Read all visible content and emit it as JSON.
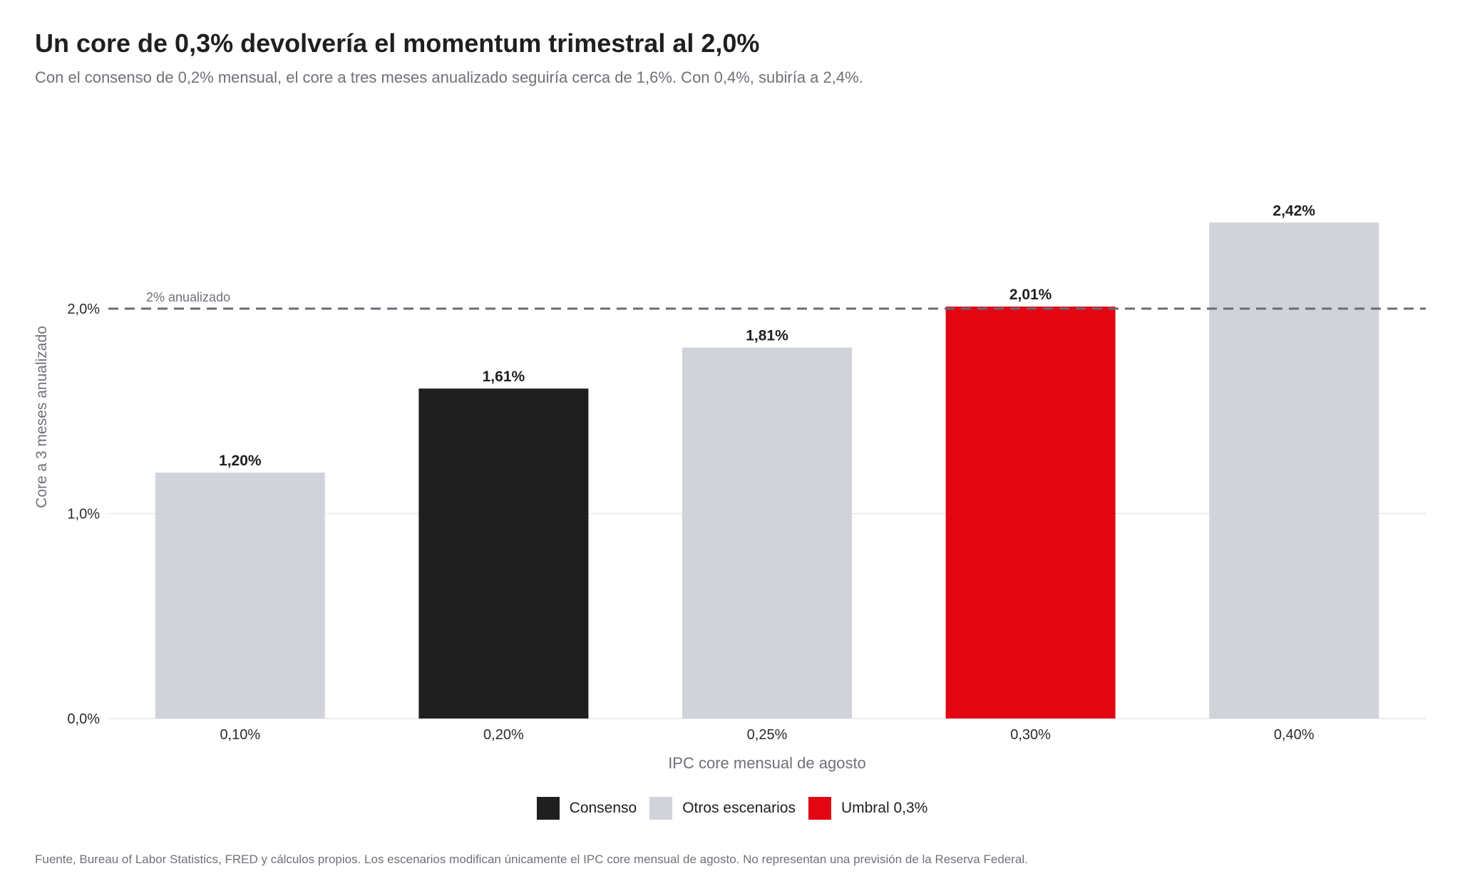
{
  "header": {
    "title": "Un core de 0,3% devolvería el momentum trimestral al 2,0%",
    "subtitle": "Con el consenso de 0,2% mensual, el core a tres meses anualizado seguiría cerca de 1,6%. Con 0,4%, subiría a 2,4%."
  },
  "footer": {
    "note": "Fuente, Bureau of Labor Statistics, FRED y cálculos propios. Los escenarios modifican únicamente el IPC core mensual de agosto. No representan una previsión de la Reserva Federal."
  },
  "legend": {
    "items": [
      {
        "label": "Consenso",
        "color": "#1f1f1f"
      },
      {
        "label": "Otros escenarios",
        "color": "#d1d3da"
      },
      {
        "label": "Umbral 0,3%",
        "color": "#e20613"
      }
    ]
  },
  "chart_data": {
    "type": "bar",
    "categories": [
      "0,10%",
      "0,20%",
      "0,25%",
      "0,30%",
      "0,40%"
    ],
    "values": [
      1.2,
      1.61,
      1.81,
      2.01,
      2.42
    ],
    "value_labels": [
      "1,20%",
      "1,61%",
      "1,81%",
      "2,01%",
      "2,42%"
    ],
    "groups": [
      "Otros escenarios",
      "Consenso",
      "Otros escenarios",
      "Umbral 0,3%",
      "Otros escenarios"
    ],
    "colors": {
      "Consenso": "#1f1f1f",
      "Otros escenarios": "#d1d3da",
      "Umbral 0,3%": "#e20613"
    },
    "xlabel": "IPC core mensual de agosto",
    "ylabel": "Core a 3 meses anualizado",
    "ylim": [
      0,
      2.55
    ],
    "yticks": [
      0,
      1,
      2
    ],
    "ytick_labels": [
      "0,0%",
      "1,0%",
      "2,0%"
    ],
    "reference_line": {
      "value": 2.0,
      "label": "2% anualizado",
      "style": "dashed",
      "color": "#6b6b78"
    },
    "grid": true
  }
}
